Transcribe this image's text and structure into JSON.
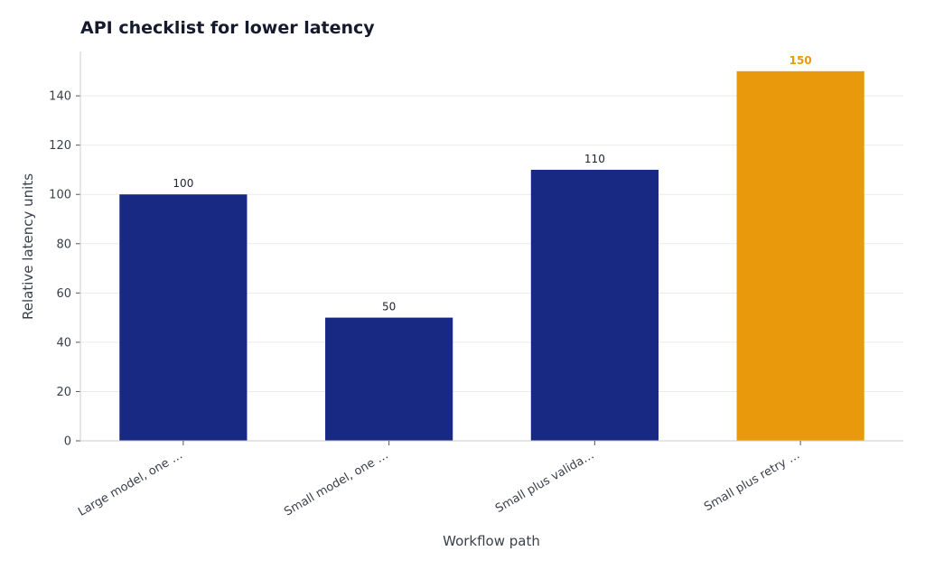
{
  "chart_data": {
    "type": "bar",
    "title": "API checklist for lower latency",
    "xlabel": "Workflow path",
    "ylabel": "Relative latency units",
    "categories": [
      "Large model, one …",
      "Small model, one …",
      "Small plus valida…",
      "Small plus retry …"
    ],
    "values": [
      100,
      50,
      110,
      150
    ],
    "data_labels": [
      "100",
      "50",
      "110",
      "150"
    ],
    "highlight_index": 3,
    "ylim": [
      0,
      158
    ],
    "yticks": [
      0,
      20,
      40,
      60,
      80,
      100,
      120,
      140
    ],
    "grid": true,
    "legend": "none"
  },
  "colors": {
    "bar": "#172983",
    "highlight": "#e89a0c",
    "grid": "#ebebeb",
    "axis": "#cccccc"
  }
}
